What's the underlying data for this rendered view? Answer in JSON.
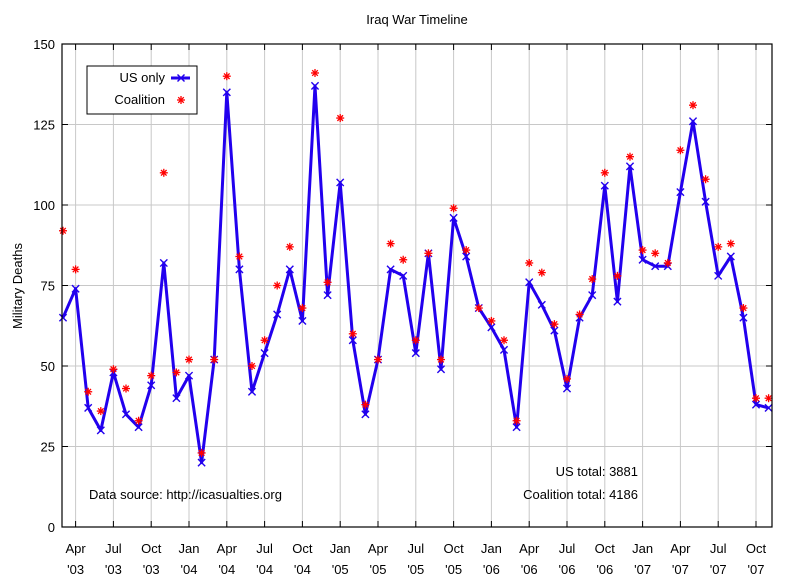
{
  "chart_data": {
    "type": "line",
    "title": "Iraq War Timeline",
    "ylabel": "Military Deaths",
    "xlabel": "",
    "ylim": [
      0,
      150
    ],
    "yticks": [
      0,
      25,
      50,
      75,
      100,
      125,
      150
    ],
    "grid": true,
    "legend_position": "top-left",
    "x_ticks": [
      {
        "month": "Apr",
        "year": "'03"
      },
      {
        "month": "Jul",
        "year": "'03"
      },
      {
        "month": "Oct",
        "year": "'03"
      },
      {
        "month": "Jan",
        "year": "'04"
      },
      {
        "month": "Apr",
        "year": "'04"
      },
      {
        "month": "Jul",
        "year": "'04"
      },
      {
        "month": "Oct",
        "year": "'04"
      },
      {
        "month": "Jan",
        "year": "'05"
      },
      {
        "month": "Apr",
        "year": "'05"
      },
      {
        "month": "Jul",
        "year": "'05"
      },
      {
        "month": "Oct",
        "year": "'05"
      },
      {
        "month": "Jan",
        "year": "'06"
      },
      {
        "month": "Apr",
        "year": "'06"
      },
      {
        "month": "Jul",
        "year": "'06"
      },
      {
        "month": "Oct",
        "year": "'06"
      },
      {
        "month": "Jan",
        "year": "'07"
      },
      {
        "month": "Apr",
        "year": "'07"
      },
      {
        "month": "Jul",
        "year": "'07"
      },
      {
        "month": "Oct",
        "year": "'07"
      }
    ],
    "series": [
      {
        "name": "US only",
        "color": "#2200ee",
        "marker": "x",
        "values": [
          65,
          74,
          37,
          30,
          48,
          35,
          31,
          44,
          82,
          40,
          47,
          20,
          52,
          135,
          80,
          42,
          54,
          66,
          80,
          64,
          137,
          72,
          107,
          58,
          35,
          52,
          80,
          78,
          54,
          85,
          49,
          96,
          84,
          68,
          62,
          55,
          31,
          76,
          69,
          61,
          43,
          65,
          72,
          106,
          70,
          112,
          83,
          81,
          81,
          104,
          126,
          101,
          78,
          84,
          65,
          38,
          37
        ]
      },
      {
        "name": "Coalition",
        "color": "#ff0000",
        "marker": "asterisk",
        "values": [
          92,
          80,
          42,
          36,
          49,
          43,
          33,
          47,
          110,
          48,
          52,
          23,
          52,
          140,
          84,
          50,
          58,
          75,
          87,
          68,
          141,
          76,
          127,
          60,
          38,
          52,
          88,
          83,
          58,
          85,
          52,
          99,
          86,
          68,
          64,
          58,
          33,
          82,
          79,
          63,
          46,
          66,
          77,
          110,
          78,
          115,
          86,
          85,
          82,
          117,
          131,
          108,
          87,
          88,
          68,
          40,
          40
        ]
      }
    ],
    "annotations": {
      "source": "Data source: http://icasualties.org",
      "us_total": "US total: 3881",
      "coalition_total": "Coalition total: 4186"
    }
  }
}
